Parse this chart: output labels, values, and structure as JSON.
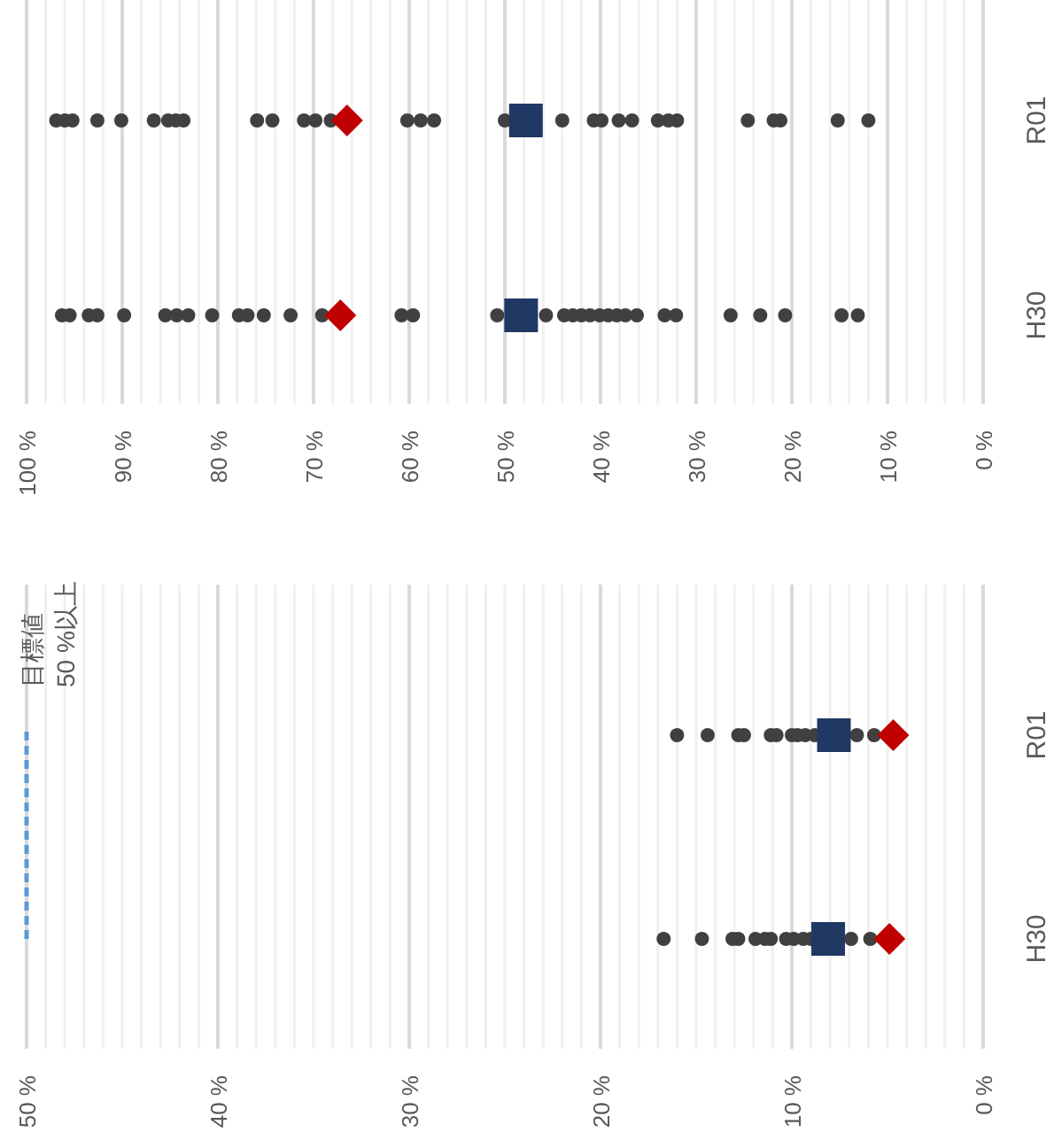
{
  "chart_data": [
    {
      "type": "scatter",
      "orientation": "horizontal",
      "categories": [
        "R01",
        "H30"
      ],
      "xlim": [
        100,
        0
      ],
      "xticks": [
        {
          "value": 100,
          "label": "100 %"
        },
        {
          "value": 90,
          "label": "90 %"
        },
        {
          "value": 80,
          "label": "80 %"
        },
        {
          "value": 70,
          "label": "70 %"
        },
        {
          "value": 60,
          "label": "60 %"
        },
        {
          "value": 50,
          "label": "50 %"
        },
        {
          "value": 40,
          "label": "40 %"
        },
        {
          "value": 30,
          "label": "30 %"
        },
        {
          "value": 20,
          "label": "20 %"
        },
        {
          "value": 10,
          "label": "10 %"
        },
        {
          "value": 0,
          "label": "0 %"
        }
      ],
      "grid": "x",
      "series": [
        {
          "color": "#404040",
          "marker": "circle",
          "x": [
            "R01",
            "R01",
            "R01",
            "R01",
            "R01",
            "R01",
            "R01",
            "R01",
            "R01",
            "R01",
            "R01",
            "R01",
            "R01",
            "R01",
            "R01",
            "R01",
            "R01",
            "R01",
            "R01",
            "R01",
            "R01",
            "R01",
            "R01",
            "R01",
            "R01",
            "R01",
            "R01",
            "R01",
            "R01",
            "R01",
            "H30",
            "H30",
            "H30",
            "H30",
            "H30",
            "H30",
            "H30",
            "H30",
            "H30",
            "H30",
            "H30",
            "H30",
            "H30",
            "H30",
            "H30",
            "H30",
            "H30",
            "H30",
            "H30",
            "H30",
            "H30",
            "H30",
            "H30",
            "H30",
            "H30",
            "H30",
            "H30",
            "H30",
            "H30",
            "H30",
            "H30",
            "H30",
            "H30",
            "H30"
          ],
          "values": [
            96.9,
            96.0,
            95.2,
            92.6,
            90.1,
            86.7,
            85.2,
            84.4,
            83.6,
            75.9,
            74.3,
            71.0,
            69.8,
            68.2,
            60.2,
            58.8,
            57.4,
            50.0,
            44.0,
            40.7,
            39.9,
            38.1,
            36.7,
            34.0,
            32.9,
            32.0,
            24.6,
            21.9,
            21.2,
            15.2,
            96.3,
            95.5,
            93.5,
            92.6,
            89.8,
            85.5,
            84.3,
            83.1,
            80.6,
            77.8,
            76.9,
            75.2,
            72.4,
            69.1,
            60.8,
            59.6,
            50.8,
            45.7,
            43.8,
            42.9,
            42.0,
            41.1,
            40.1,
            39.2,
            38.3,
            37.4,
            36.2,
            33.3,
            32.1,
            26.4,
            23.3,
            20.7,
            14.8,
            13.1
          ]
        },
        {
          "color": "#404040",
          "marker": "circle",
          "x": [
            "R01"
          ],
          "values": [
            12.0
          ]
        },
        {
          "color": "#1f3864",
          "marker": "square",
          "x": [
            "R01",
            "H30"
          ],
          "values": [
            47.8,
            48.3
          ]
        },
        {
          "color": "#c00000",
          "marker": "diamond",
          "x": [
            "R01",
            "H30"
          ],
          "values": [
            66.5,
            67.2
          ]
        }
      ]
    },
    {
      "type": "scatter",
      "orientation": "horizontal",
      "categories": [
        "R01",
        "H30"
      ],
      "xlim": [
        50,
        0
      ],
      "xticks": [
        {
          "value": 50,
          "label": "50 %"
        },
        {
          "value": 40,
          "label": "40 %"
        },
        {
          "value": 30,
          "label": "30 %"
        },
        {
          "value": 20,
          "label": "20 %"
        },
        {
          "value": 10,
          "label": "10 %"
        },
        {
          "value": 0,
          "label": "0 %"
        }
      ],
      "grid": "x",
      "ref_lines": [
        {
          "axis": "x",
          "value": 50,
          "label": "目標値\n50 %以上",
          "color": "#5b9bd5",
          "line_style": "dashed"
        }
      ],
      "series": [
        {
          "color": "#404040",
          "marker": "circle",
          "x": [
            "R01",
            "R01",
            "R01",
            "R01",
            "R01",
            "R01",
            "R01",
            "R01",
            "R01",
            "R01",
            "R01",
            "R01",
            "H30",
            "H30",
            "H30",
            "H30",
            "H30",
            "H30",
            "H30",
            "H30",
            "H30",
            "H30",
            "H30",
            "H30",
            "H30"
          ],
          "values": [
            16.0,
            14.4,
            12.8,
            12.5,
            11.1,
            10.8,
            10.0,
            9.7,
            9.3,
            8.8,
            6.6,
            5.7,
            16.7,
            14.7,
            13.1,
            12.8,
            11.9,
            11.4,
            11.1,
            10.3,
            9.9,
            9.4,
            9.0,
            6.9,
            5.9
          ]
        },
        {
          "color": "#1f3864",
          "marker": "square",
          "x": [
            "R01",
            "H30"
          ],
          "values": [
            7.8,
            8.1
          ]
        },
        {
          "color": "#c00000",
          "marker": "diamond",
          "x": [
            "R01",
            "H30"
          ],
          "values": [
            4.7,
            4.9
          ]
        }
      ]
    }
  ]
}
